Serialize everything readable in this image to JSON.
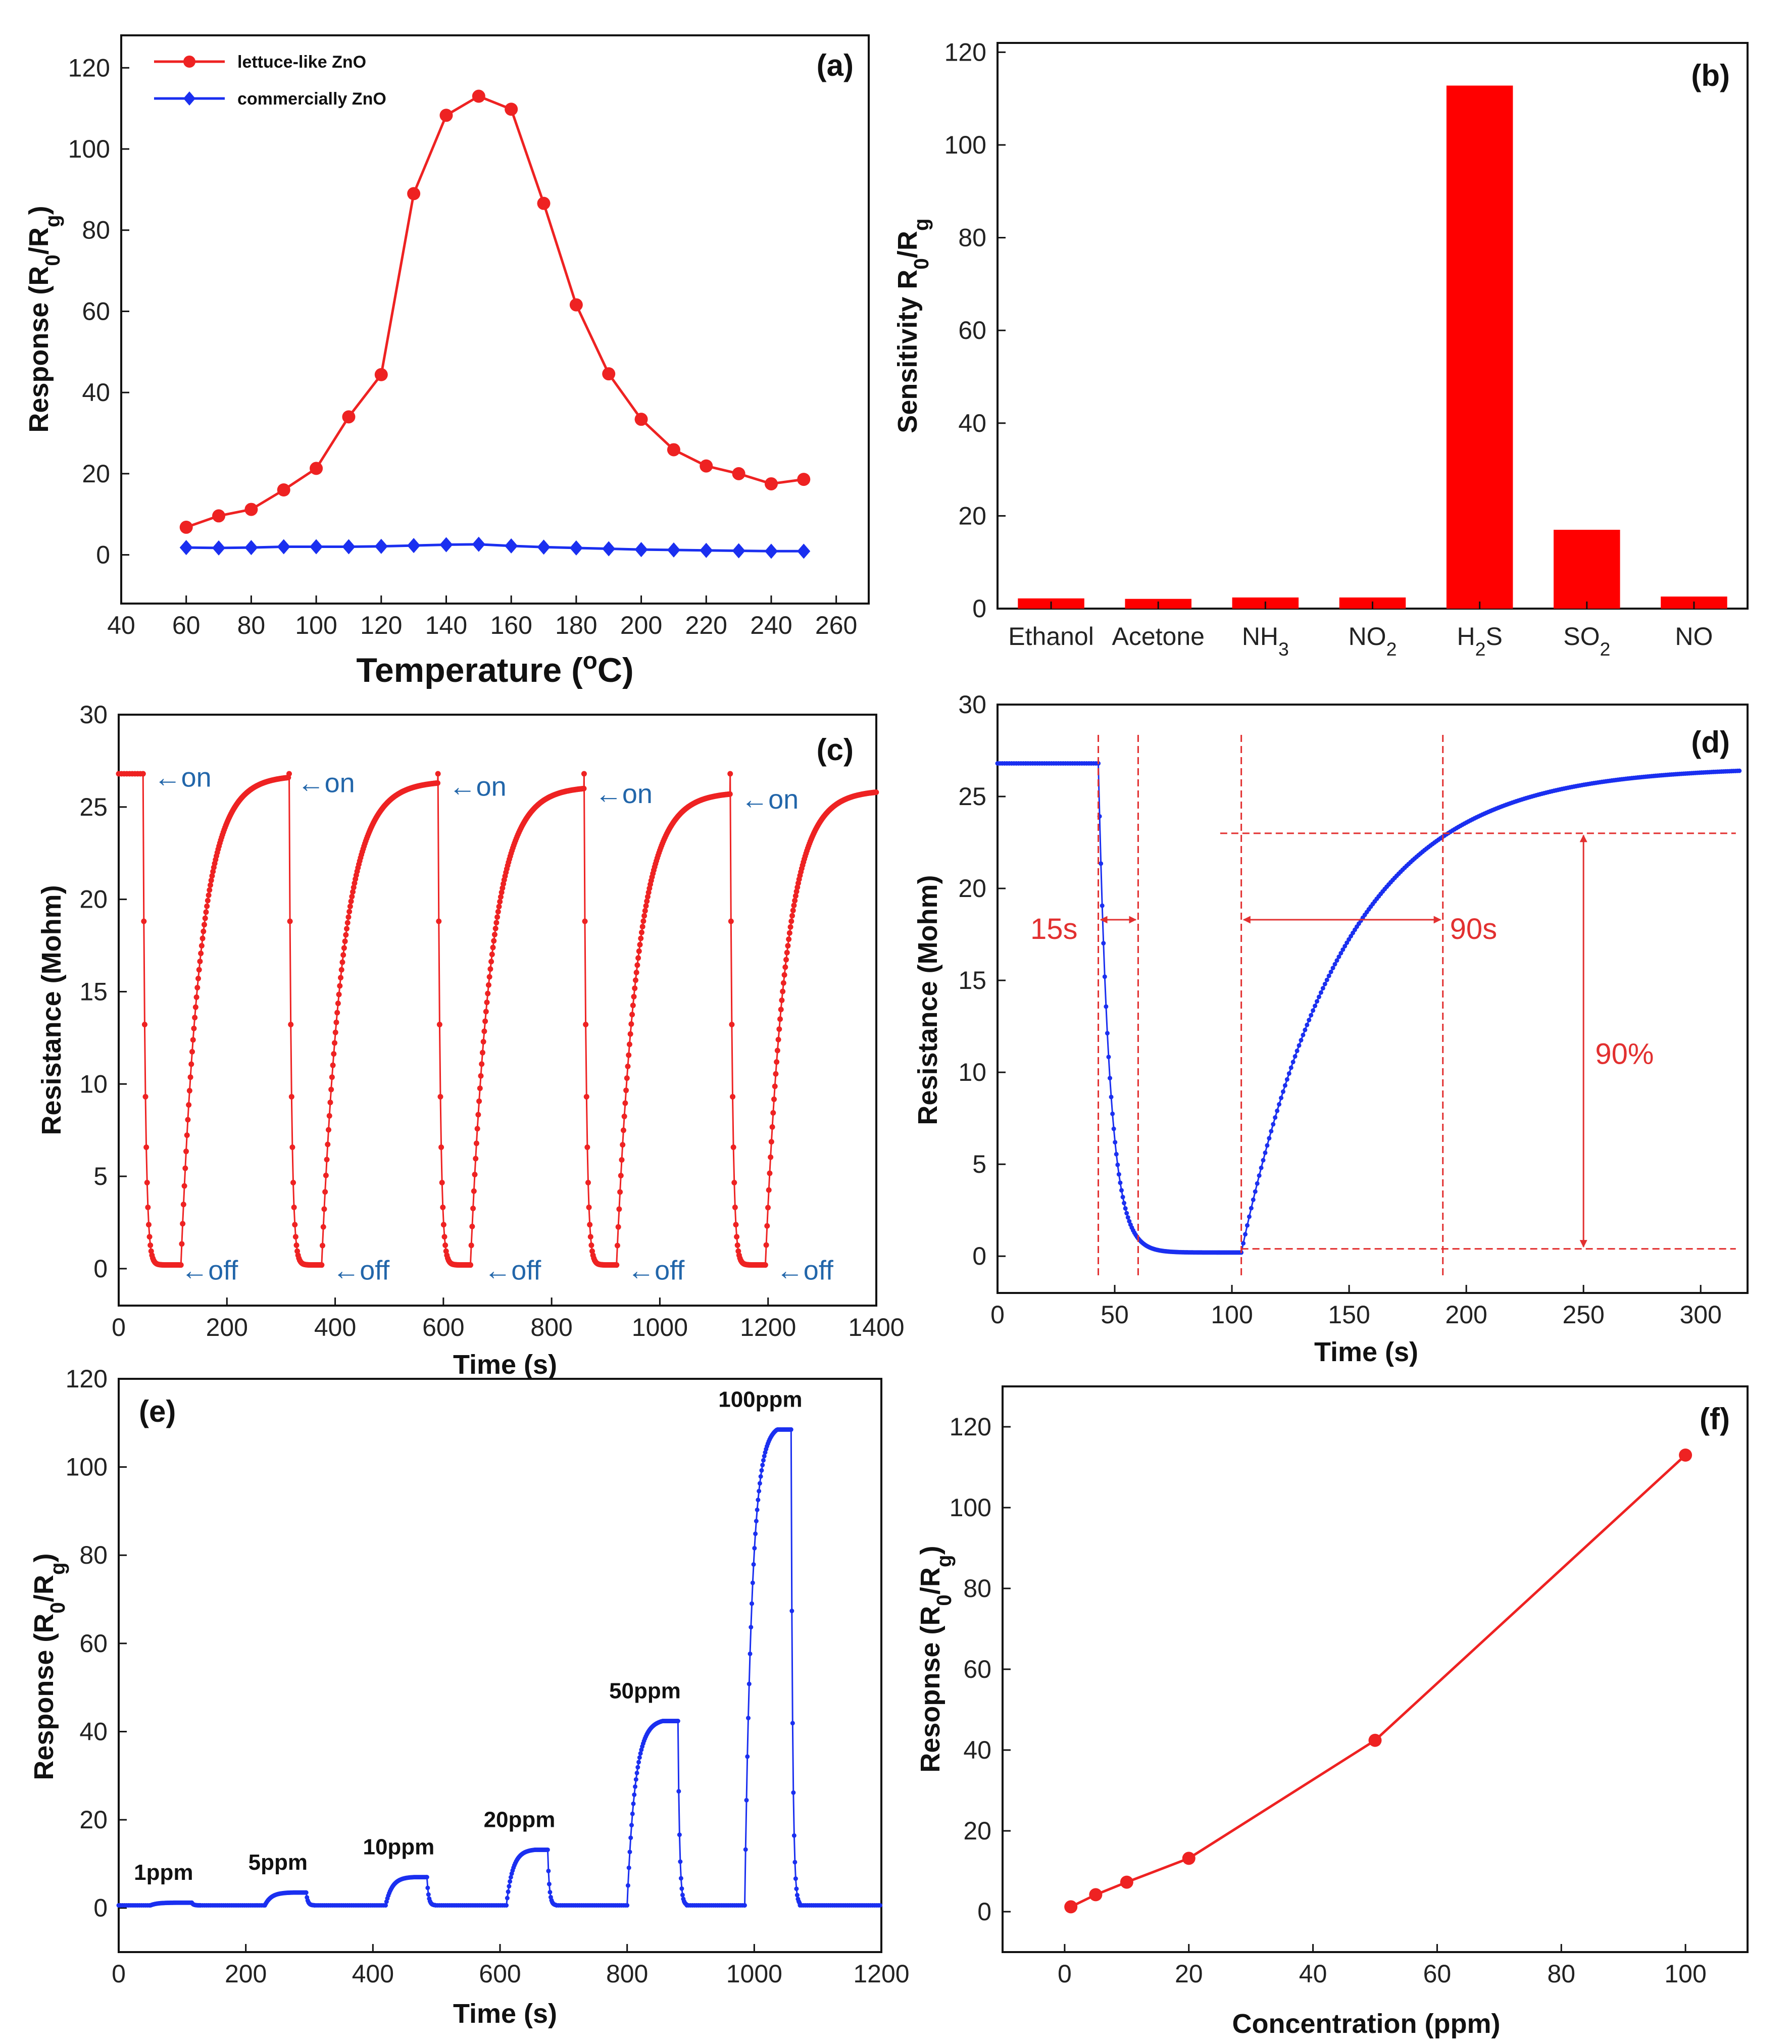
{
  "chart_data": [
    {
      "id": "a",
      "type": "line",
      "panel_label": "(a)",
      "xlabel": "Temperature (°C)",
      "ylabel": "Response (R0/Rg)",
      "xlim": [
        40,
        270
      ],
      "ylim": [
        -12,
        128
      ],
      "xticks": [
        40,
        60,
        80,
        100,
        120,
        140,
        160,
        180,
        200,
        220,
        240,
        260
      ],
      "yticks": [
        0,
        20,
        40,
        60,
        80,
        100,
        120
      ],
      "x": [
        60,
        70,
        80,
        90,
        100,
        110,
        120,
        130,
        140,
        150,
        160,
        170,
        180,
        190,
        200,
        210,
        220,
        230,
        240,
        250
      ],
      "series": [
        {
          "name": "lettuce-like ZnO",
          "color": "#ee2222",
          "marker": "circle",
          "values": [
            6.8,
            9.6,
            11.2,
            16.0,
            21.3,
            34.0,
            44.4,
            89.0,
            108.3,
            113.0,
            109.8,
            86.6,
            61.6,
            44.6,
            33.4,
            25.9,
            21.9,
            20.0,
            17.5,
            18.6
          ]
        },
        {
          "name": "commercially ZnO",
          "color": "#1a2ff0",
          "marker": "diamond",
          "values": [
            1.8,
            1.7,
            1.8,
            2.0,
            2.0,
            2.0,
            2.1,
            2.3,
            2.5,
            2.6,
            2.2,
            1.9,
            1.7,
            1.5,
            1.3,
            1.2,
            1.1,
            1.0,
            0.9,
            0.9
          ]
        }
      ]
    },
    {
      "id": "b",
      "type": "bar",
      "panel_label": "(b)",
      "ylabel": "Sensitivity R0/Rg",
      "ylim": [
        0,
        122
      ],
      "yticks": [
        0,
        20,
        40,
        60,
        80,
        100,
        120
      ],
      "categories": [
        "Ethanol",
        "Acetone",
        "NH3",
        "NO2",
        "H2S",
        "SO2",
        "NO"
      ],
      "values": [
        2.2,
        2.1,
        2.4,
        2.4,
        112.8,
        17.0,
        2.6
      ],
      "color": "#ff0000"
    },
    {
      "id": "c",
      "type": "line",
      "panel_label": "(c)",
      "xlabel": "Time (s)",
      "ylabel": "Resistance (Mohm)",
      "xlim": [
        0,
        1400
      ],
      "ylim": [
        -2,
        30
      ],
      "xticks": [
        0,
        200,
        400,
        600,
        800,
        1000,
        1200,
        1400
      ],
      "yticks": [
        0,
        5,
        10,
        15,
        20,
        25,
        30
      ],
      "color": "#ee2222",
      "cycles": [
        {
          "on": 45,
          "off": 115,
          "peak": 26.7
        },
        {
          "on": 315,
          "off": 375,
          "peak": 26.6
        },
        {
          "on": 590,
          "off": 650,
          "peak": 26.3
        },
        {
          "on": 860,
          "off": 920,
          "peak": 26.0
        },
        {
          "on": 1130,
          "off": 1195,
          "peak": 25.7
        }
      ],
      "end_value": 25.8,
      "annotations": [
        {
          "text": "←on",
          "x": 65,
          "y": 26.6
        },
        {
          "text": "←on",
          "x": 330,
          "y": 26.3
        },
        {
          "text": "←on",
          "x": 610,
          "y": 26.1
        },
        {
          "text": "←on",
          "x": 880,
          "y": 25.7
        },
        {
          "text": "←on",
          "x": 1150,
          "y": 25.4
        },
        {
          "text": "←off",
          "x": 115,
          "y": -0.1
        },
        {
          "text": "←off",
          "x": 395,
          "y": -0.1
        },
        {
          "text": "←off",
          "x": 675,
          "y": -0.1
        },
        {
          "text": "←off",
          "x": 940,
          "y": -0.1
        },
        {
          "text": "←off",
          "x": 1215,
          "y": -0.1
        }
      ]
    },
    {
      "id": "d",
      "type": "line",
      "panel_label": "(d)",
      "xlabel": "Time (s)",
      "ylabel": "Resistance (Mohm)",
      "xlim": [
        0,
        320
      ],
      "ylim": [
        -2,
        30
      ],
      "xticks": [
        0,
        50,
        100,
        150,
        200,
        250,
        300
      ],
      "yticks": [
        0,
        5,
        10,
        15,
        20,
        25,
        30
      ],
      "color": "#1a2ff0",
      "on_time": 43,
      "off_time": 104,
      "end_time": 317,
      "baseline": 26.8,
      "floor": 0.2,
      "end_value": 26.4,
      "guide_x": [
        43,
        60,
        104,
        190
      ],
      "guide_y": [
        23.0,
        0.4
      ],
      "annotations": [
        {
          "text": "15s",
          "x": 14,
          "y": 17.8
        },
        {
          "text": "90s",
          "x": 193,
          "y": 17.8
        },
        {
          "text": "90%",
          "x": 255,
          "y": 11.0
        }
      ]
    },
    {
      "id": "e",
      "type": "line",
      "panel_label": "(e)",
      "xlabel": "Time (s)",
      "ylabel": "Response (R0/Rg)",
      "xlim": [
        0,
        1200
      ],
      "ylim": [
        -10,
        120
      ],
      "xticks": [
        0,
        200,
        400,
        600,
        800,
        1000,
        1200
      ],
      "yticks": [
        0,
        20,
        40,
        60,
        80,
        100,
        120
      ],
      "color": "#1a2ff0",
      "pulses": [
        {
          "label": "1ppm",
          "on": 50,
          "off": 115,
          "value": 1.2
        },
        {
          "label": "5ppm",
          "on": 230,
          "off": 295,
          "value": 3.5
        },
        {
          "label": "10ppm",
          "on": 420,
          "off": 485,
          "value": 7.0
        },
        {
          "label": "20ppm",
          "on": 610,
          "off": 675,
          "value": 13.2
        },
        {
          "label": "50ppm",
          "on": 800,
          "off": 880,
          "value": 42.4
        },
        {
          "label": "100ppm",
          "on": 985,
          "off": 1058,
          "value": 108.5
        }
      ]
    },
    {
      "id": "f",
      "type": "line",
      "panel_label": "(f)",
      "xlabel": "Concentration (ppm)",
      "ylabel": "Resopnse (R0/Rg)",
      "xlim": [
        -10,
        110
      ],
      "ylim": [
        -10,
        130
      ],
      "xticks": [
        0,
        20,
        40,
        60,
        80,
        100
      ],
      "yticks": [
        0,
        20,
        40,
        60,
        80,
        100,
        120
      ],
      "color": "#ee2222",
      "x": [
        1,
        5,
        10,
        20,
        50,
        100
      ],
      "values": [
        1.2,
        4.2,
        7.3,
        13.2,
        42.4,
        113.0
      ]
    }
  ]
}
